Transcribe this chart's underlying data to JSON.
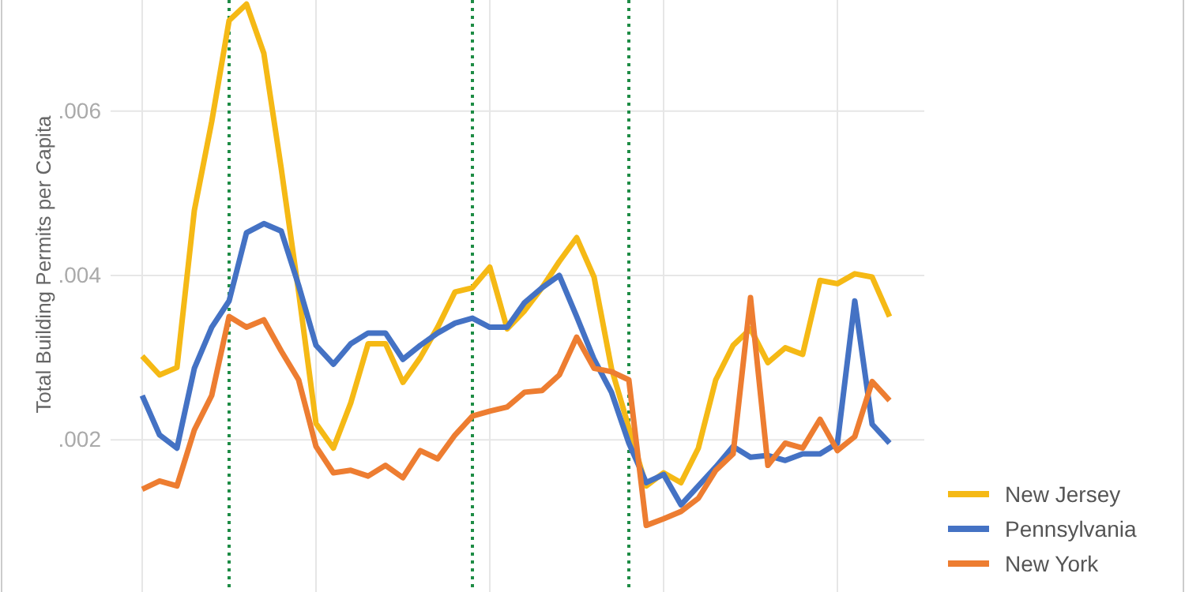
{
  "chart_data": {
    "type": "line",
    "ylabel": "Total Building Permits per Capita",
    "categories": [
      null,
      null,
      null,
      null,
      null,
      null,
      null,
      null,
      null,
      null,
      null,
      null,
      null,
      null,
      null,
      null,
      null,
      null,
      null,
      null,
      null,
      null,
      null,
      null,
      null,
      null,
      null,
      null,
      null,
      null,
      null,
      null,
      null,
      null,
      null,
      null,
      null,
      null,
      null,
      null,
      null,
      null,
      null,
      null
    ],
    "series": [
      {
        "name": "New Jersey",
        "color": "#f5b915",
        "values": [
          0.00302,
          0.00279,
          0.00288,
          0.00479,
          0.00587,
          0.0071,
          0.0073,
          0.0067,
          0.0053,
          0.0038,
          0.0022,
          0.0019,
          0.00245,
          0.00317,
          0.00317,
          0.0027,
          0.003,
          0.00337,
          0.0038,
          0.00385,
          0.0041,
          0.00335,
          0.00357,
          0.00385,
          0.00417,
          0.00446,
          0.00398,
          0.00287,
          0.00215,
          0.00144,
          0.0016,
          0.00148,
          0.0019,
          0.00273,
          0.00315,
          0.00335,
          0.00294,
          0.00312,
          0.00304,
          0.00394,
          0.0039,
          0.00402,
          0.00398,
          0.0035
        ]
      },
      {
        "name": "Pennsylvania",
        "color": "#4472c4",
        "values": [
          0.00254,
          0.00206,
          0.0019,
          0.00287,
          0.00337,
          0.00369,
          0.00452,
          0.00463,
          0.00454,
          0.00388,
          0.00315,
          0.00292,
          0.00317,
          0.0033,
          0.0033,
          0.00298,
          0.00315,
          0.0033,
          0.00342,
          0.00348,
          0.00337,
          0.00337,
          0.00367,
          0.00385,
          0.004,
          0.0035,
          0.00298,
          0.00258,
          0.00196,
          0.00148,
          0.00158,
          0.00121,
          0.00144,
          0.00167,
          0.00192,
          0.00179,
          0.00181,
          0.00175,
          0.00183,
          0.00183,
          0.00196,
          0.00369,
          0.00219,
          0.00196
        ]
      },
      {
        "name": "New York",
        "color": "#ed7d31",
        "values": [
          0.0014,
          0.0015,
          0.00144,
          0.00212,
          0.00254,
          0.0035,
          0.00337,
          0.00346,
          0.00308,
          0.00273,
          0.00192,
          0.0016,
          0.00163,
          0.00156,
          0.00169,
          0.00154,
          0.00187,
          0.00177,
          0.00206,
          0.00229,
          0.00235,
          0.0024,
          0.00258,
          0.0026,
          0.00279,
          0.00325,
          0.00287,
          0.00283,
          0.00273,
          0.00096,
          0.00104,
          0.00113,
          0.00129,
          0.00163,
          0.00183,
          0.00373,
          0.00169,
          0.00196,
          0.0019,
          0.00225,
          0.00187,
          0.00204,
          0.00271,
          0.00248
        ]
      }
    ],
    "ylim": [
      0.00015,
      0.00735
    ],
    "yticks": [
      {
        "value": 0.002,
        "label": ".002"
      },
      {
        "value": 0.004,
        "label": ".004"
      },
      {
        "value": 0.006,
        "label": ".006"
      }
    ],
    "grid": true,
    "legend": "bottom right",
    "line_style": "solid",
    "marker": "none"
  }
}
